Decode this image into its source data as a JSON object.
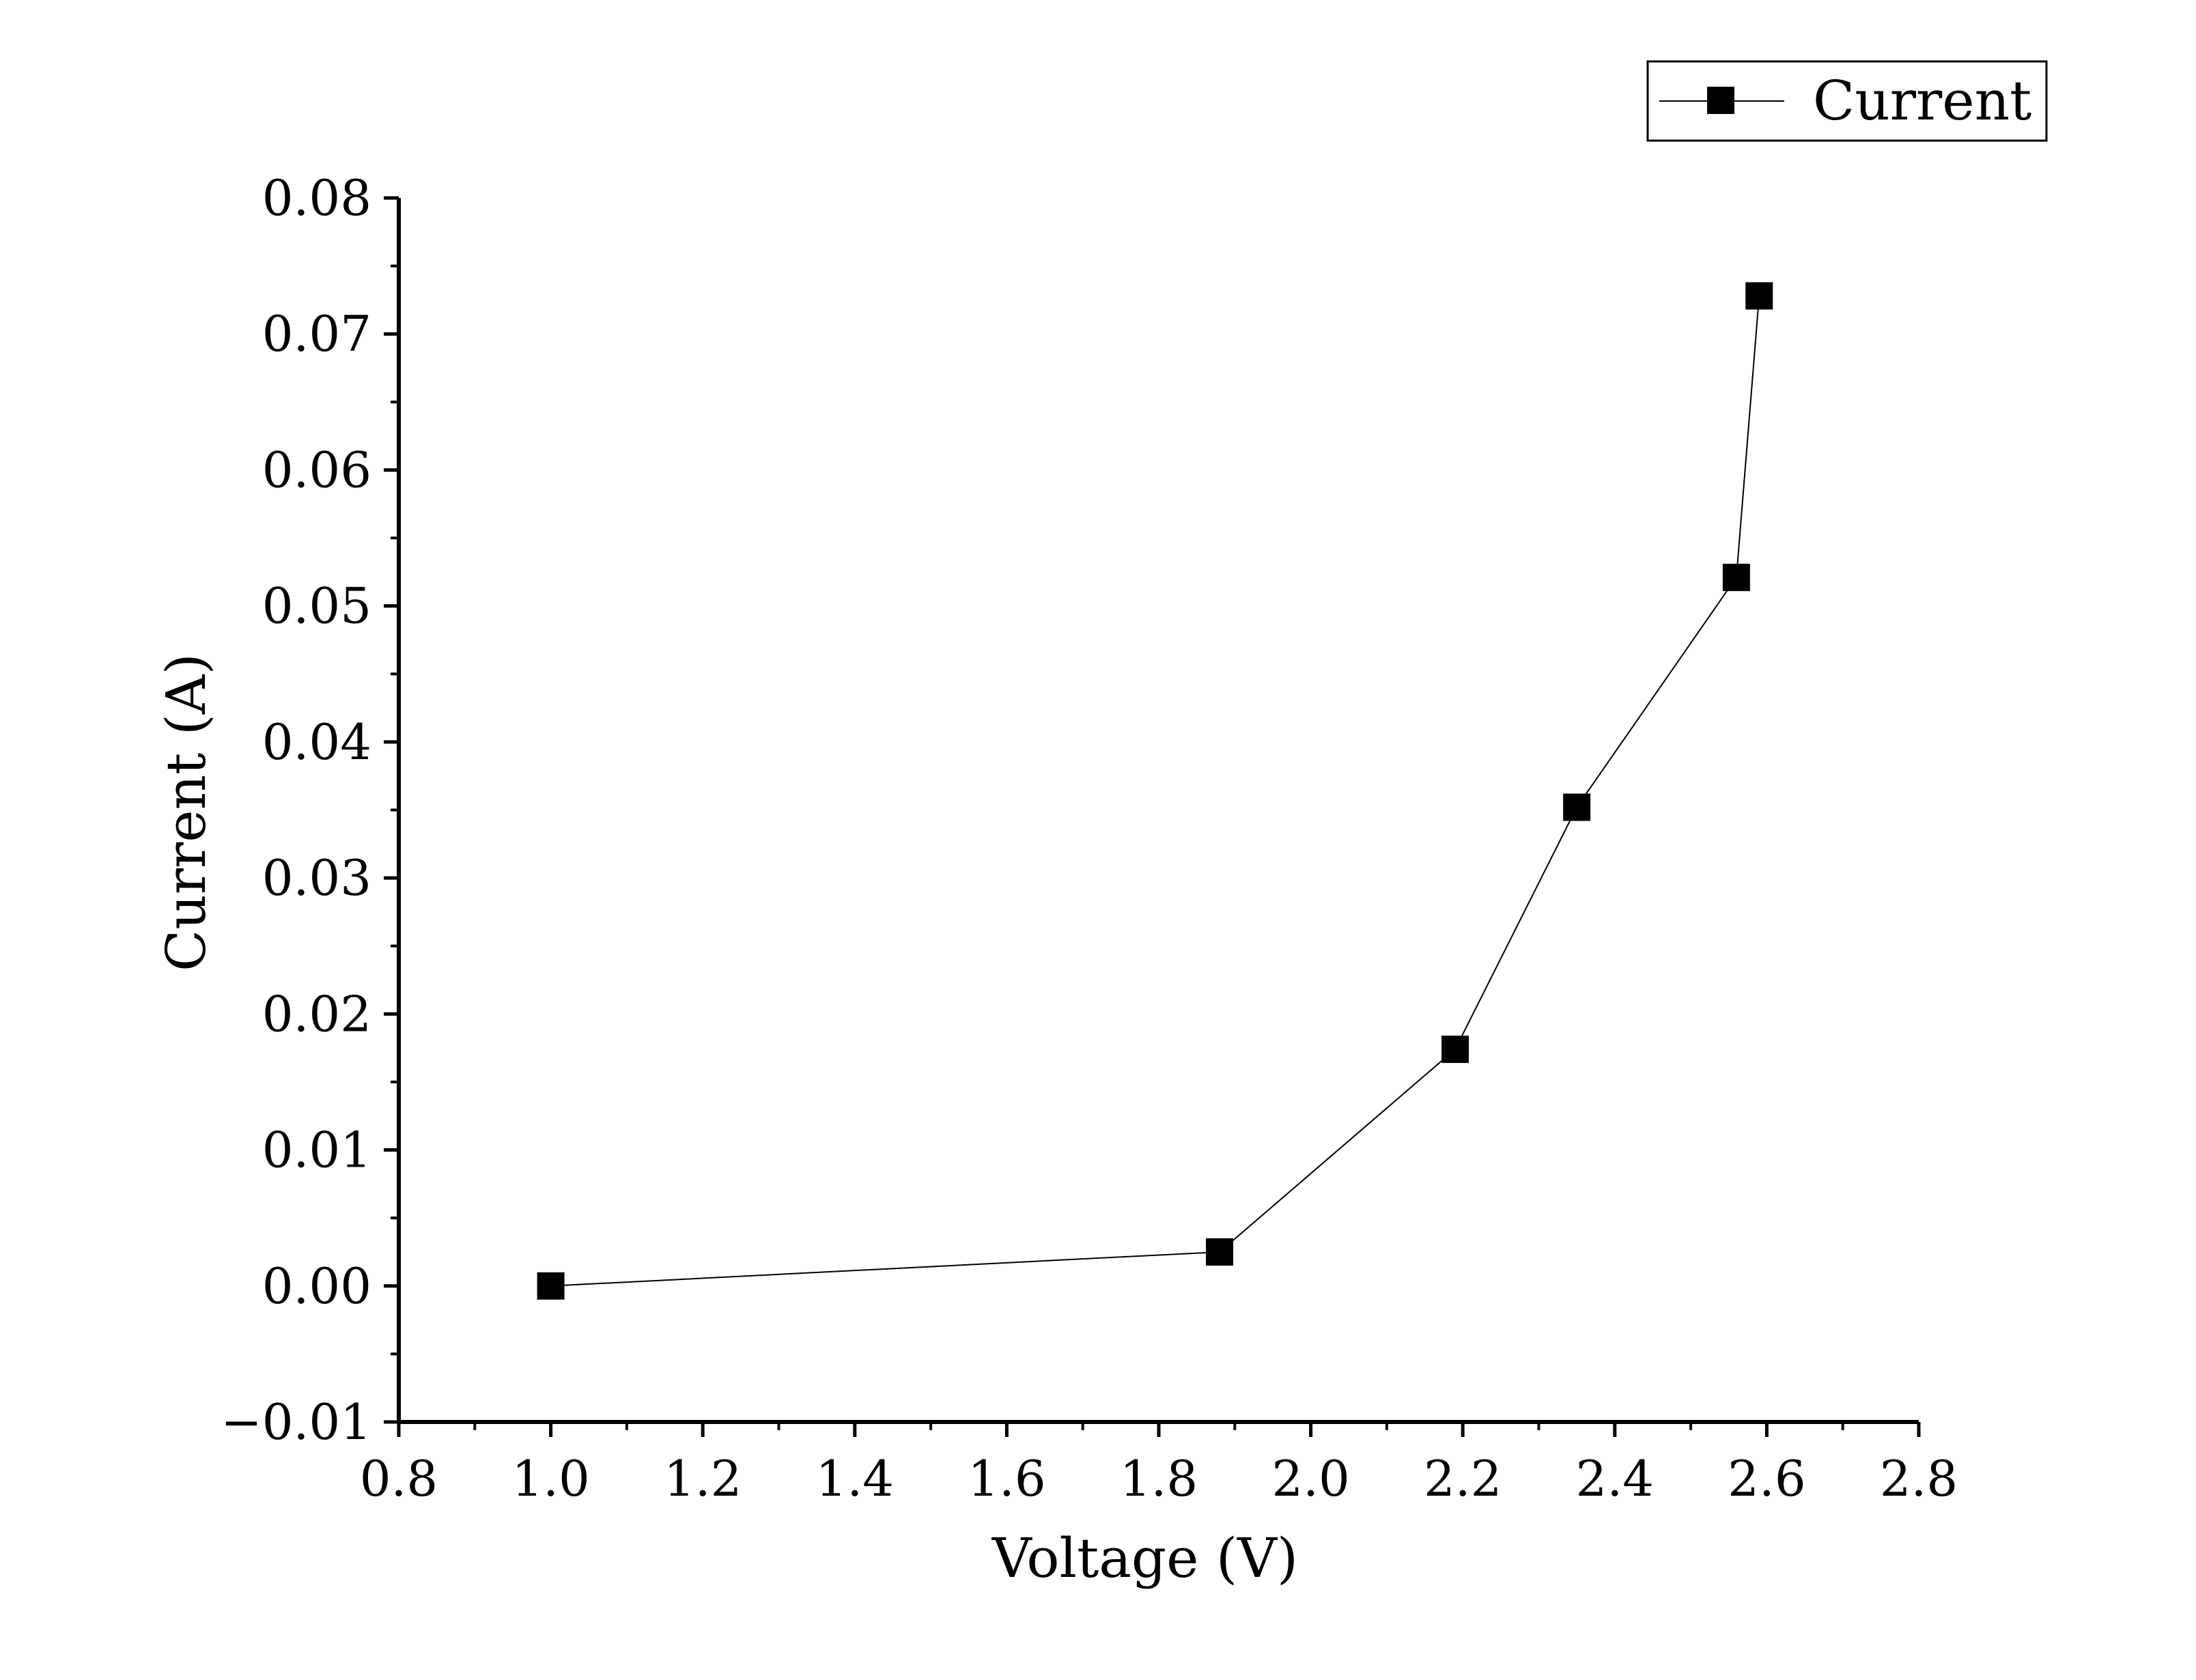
{
  "chart_data": {
    "type": "line",
    "title": "",
    "xlabel": "Voltage (V)",
    "ylabel": "Current (A)",
    "xlim": [
      0.8,
      2.8
    ],
    "ylim": [
      -0.01,
      0.08
    ],
    "x_ticks": [
      "0.8",
      "1.0",
      "1.2",
      "1.4",
      "1.6",
      "1.8",
      "2.0",
      "2.2",
      "2.4",
      "2.6",
      "2.8"
    ],
    "y_ticks": [
      "-0.01",
      "0.00",
      "0.01",
      "0.02",
      "0.03",
      "0.04",
      "0.05",
      "0.06",
      "0.07",
      "0.08"
    ],
    "grid": false,
    "legend_position": "top-right",
    "marker": "square",
    "line_color": "#000000",
    "series": [
      {
        "name": "Current",
        "x": [
          1.0,
          1.88,
          2.19,
          2.35,
          2.56,
          2.59
        ],
        "y": [
          0.0,
          0.0025,
          0.0174,
          0.0352,
          0.0521,
          0.0728
        ]
      }
    ]
  }
}
